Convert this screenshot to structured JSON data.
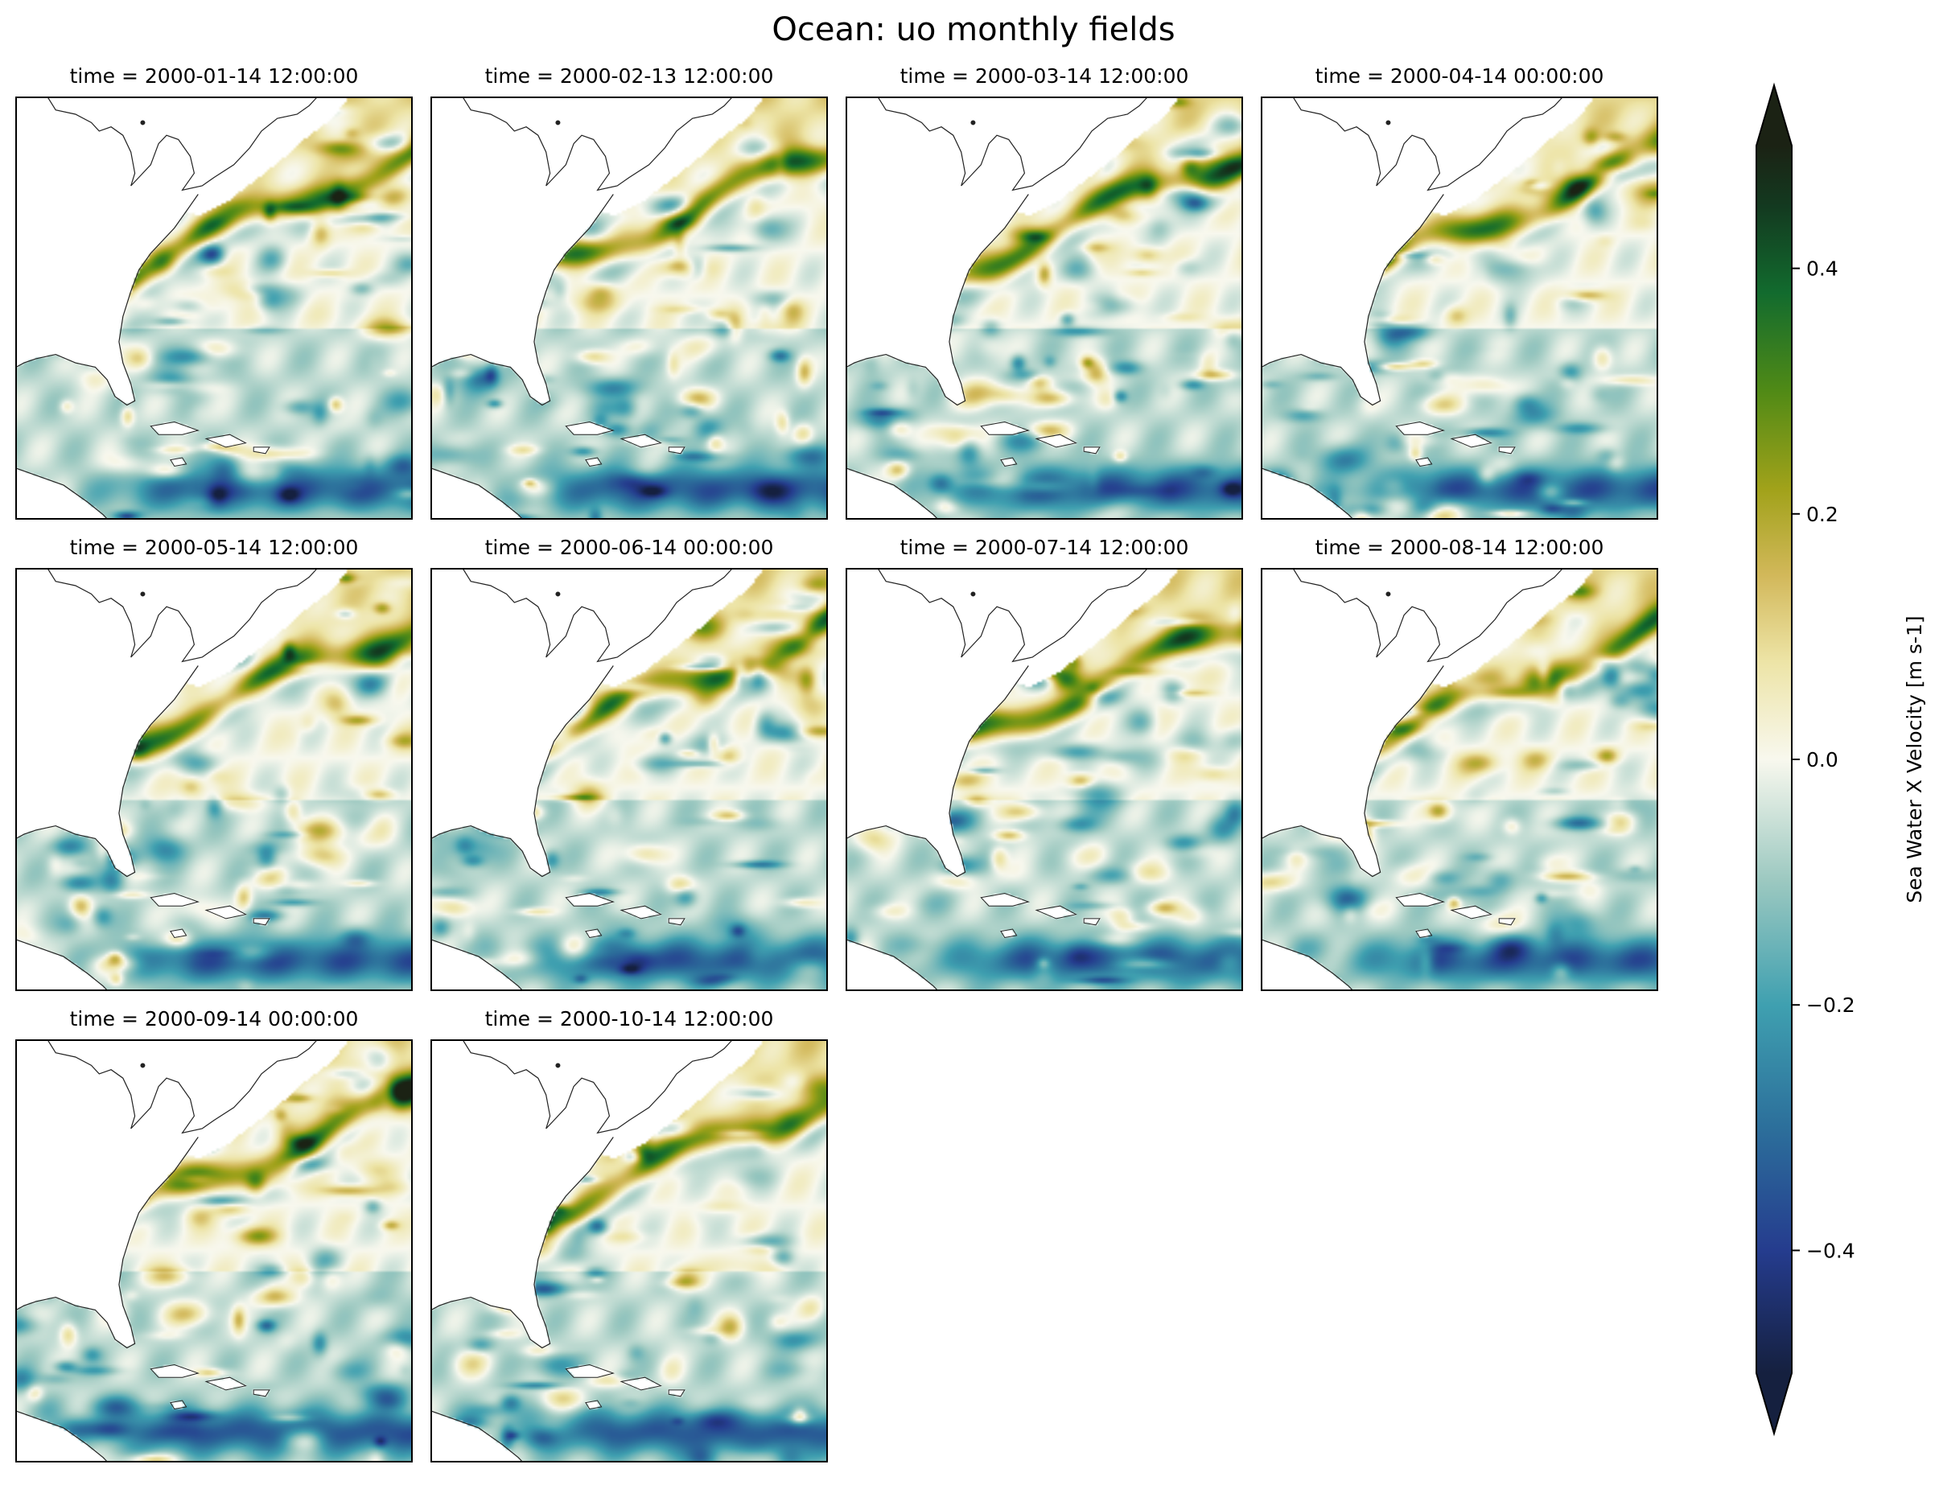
{
  "chart_data": {
    "type": "heatmap",
    "title": "Ocean: uo monthly fields",
    "panels": [
      {
        "title": "time = 2000-01-14 12:00:00",
        "seed": 11
      },
      {
        "title": "time = 2000-02-13 12:00:00",
        "seed": 23
      },
      {
        "title": "time = 2000-03-14 12:00:00",
        "seed": 37
      },
      {
        "title": "time = 2000-04-14 00:00:00",
        "seed": 41
      },
      {
        "title": "time = 2000-05-14 12:00:00",
        "seed": 53
      },
      {
        "title": "time = 2000-06-14 00:00:00",
        "seed": 67
      },
      {
        "title": "time = 2000-07-14 12:00:00",
        "seed": 71
      },
      {
        "title": "time = 2000-08-14 12:00:00",
        "seed": 83
      },
      {
        "title": "time = 2000-09-14 00:00:00",
        "seed": 97
      },
      {
        "title": "time = 2000-10-14 12:00:00",
        "seed": 101
      }
    ],
    "grid": {
      "rows": 3,
      "cols": 4
    },
    "colorbar": {
      "label": "Sea Water X Velocity [m s-1]",
      "vmin": -0.5,
      "vmax": 0.5,
      "extend": "both",
      "ticks": [
        {
          "value": 0.4,
          "label": "0.4"
        },
        {
          "value": 0.2,
          "label": "0.2"
        },
        {
          "value": 0.0,
          "label": "0.0"
        },
        {
          "value": -0.2,
          "label": "−0.2"
        },
        {
          "value": -0.4,
          "label": "−0.4"
        }
      ],
      "colormap_stops": [
        {
          "value": -0.5,
          "color": "#15203f"
        },
        {
          "value": -0.4,
          "color": "#253c8e"
        },
        {
          "value": -0.3,
          "color": "#2c6f9b"
        },
        {
          "value": -0.2,
          "color": "#3fa0b0"
        },
        {
          "value": -0.1,
          "color": "#9bc8c0"
        },
        {
          "value": 0.0,
          "color": "#f8f8ee"
        },
        {
          "value": 0.08,
          "color": "#ede4a6"
        },
        {
          "value": 0.15,
          "color": "#d2b85a"
        },
        {
          "value": 0.22,
          "color": "#a1a21a"
        },
        {
          "value": 0.3,
          "color": "#508a16"
        },
        {
          "value": 0.38,
          "color": "#126b2e"
        },
        {
          "value": 0.45,
          "color": "#133a20"
        },
        {
          "value": 0.5,
          "color": "#1b2214"
        }
      ]
    },
    "map_region": "western North Atlantic, Gulf of Mexico and Caribbean",
    "grid_lines": false
  }
}
